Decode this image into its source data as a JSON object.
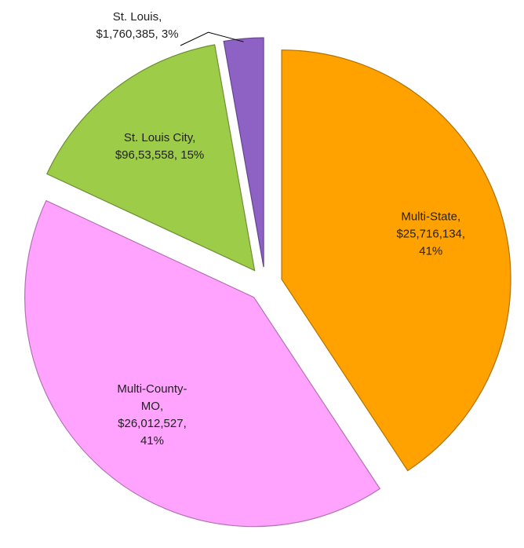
{
  "chart_data": {
    "type": "pie",
    "labels": [
      [
        "Multi-State,",
        "$25,716,134,",
        "41%"
      ],
      [
        "Multi-County-",
        "MO,",
        "$26,012,527,",
        "41%"
      ],
      [
        "St. Louis City,",
        "$96,53,558, 15%"
      ],
      [
        "St. Louis,",
        "$1,760,385, 3%"
      ]
    ],
    "values": [
      25716134,
      26012527,
      9653558,
      1760385
    ],
    "colors": [
      "#ffa200",
      "#ffa3ff",
      "#9ccc48",
      "#8e62c4"
    ],
    "exploded": true
  }
}
